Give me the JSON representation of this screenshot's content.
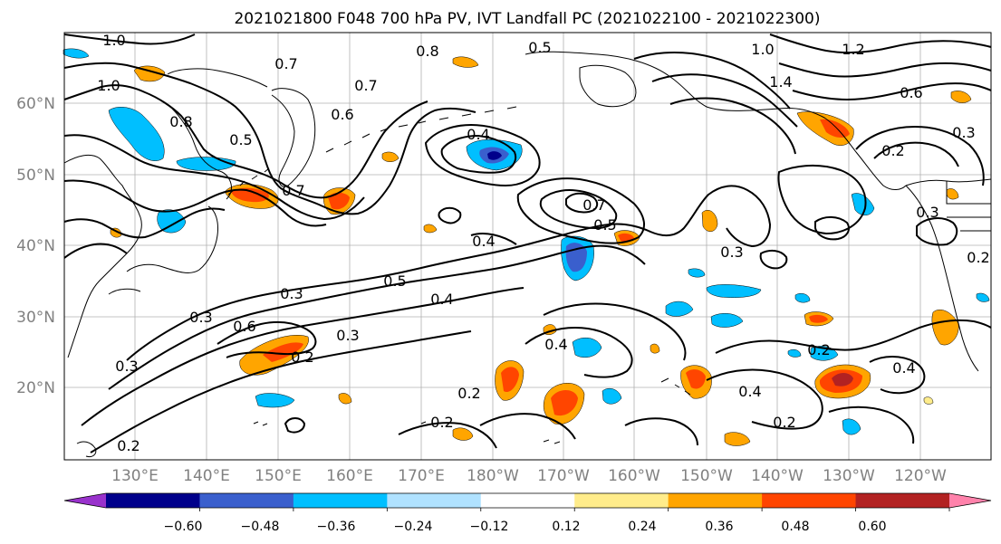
{
  "title": "2021021800 F048 700 hPa PV, IVT Landfall PC (2021022100 - 2021022300)",
  "lat_labels": [
    "60°N",
    "50°N",
    "40°N",
    "30°N",
    "20°N"
  ],
  "lon_labels": [
    "130°E",
    "140°E",
    "150°E",
    "160°E",
    "170°E",
    "180°W",
    "170°W",
    "160°W",
    "150°W",
    "140°W",
    "130°W",
    "120°W"
  ],
  "colorbar": {
    "ticks": [
      "−0.60",
      "−0.48",
      "−0.36",
      "−0.24",
      "−0.12",
      "0.12",
      "0.24",
      "0.36",
      "0.48",
      "0.60"
    ],
    "colors": [
      "#9932cc",
      "#00008b",
      "#3a5fcd",
      "#00bfff",
      "#b0e2ff",
      "#ffffff",
      "#ffec8b",
      "#ffa500",
      "#ff4500",
      "#b22222",
      "#ff82ab"
    ]
  },
  "contour_labels": [
    "1.0",
    "0.7",
    "0.8",
    "0.5",
    "1.0",
    "1.2",
    "1.4",
    "0.6",
    "0.3",
    "0.7",
    "0.6",
    "0.5",
    "0.4",
    "0.7",
    "0.5",
    "0.4",
    "0.3",
    "0.2",
    "0.3",
    "0.5",
    "0.4",
    "0.3",
    "0.6",
    "0.3",
    "0.2",
    "0.3",
    "0.4",
    "0.2",
    "0.4",
    "0.2",
    "0.2",
    "0.4",
    "0.2",
    "0.2",
    "0.3",
    "0.2",
    "0.8",
    "0.7",
    "1.0"
  ]
}
